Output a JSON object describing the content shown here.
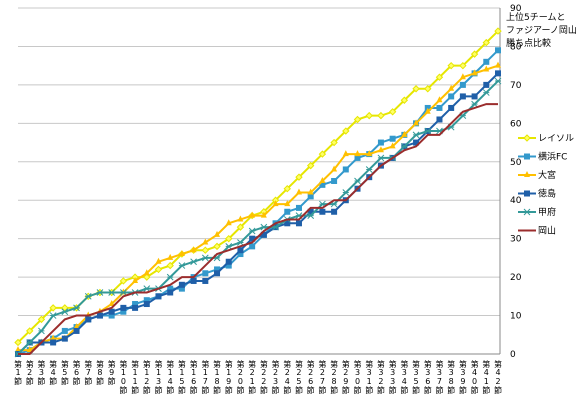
{
  "chart_data": {
    "type": "line",
    "title": [
      "上位5チームと",
      "ファジアーノ岡山",
      "勝ち点比較"
    ],
    "categories": [
      "第1節",
      "第2節",
      "第3節",
      "第4節",
      "第5節",
      "第6節",
      "第7節",
      "第8節",
      "第9節",
      "第10節",
      "第11節",
      "第12節",
      "第13節",
      "第14節",
      "第15節",
      "第16節",
      "第17節",
      "第18節",
      "第19節",
      "第20節",
      "第21節",
      "第22節",
      "第23節",
      "第24節",
      "第25節",
      "第26節",
      "第27節",
      "第28節",
      "第29節",
      "第30節",
      "第31節",
      "第32節",
      "第33節",
      "第34節",
      "第35節",
      "第36節",
      "第37節",
      "第38節",
      "第39節",
      "第40節",
      "第41節",
      "第42節"
    ],
    "ylim": [
      0,
      90
    ],
    "yticks": [
      0,
      10,
      20,
      30,
      40,
      50,
      60,
      70,
      80,
      90
    ],
    "grid": true,
    "legend": "right",
    "series": [
      {
        "name": "レイソル",
        "color": "#e6e600",
        "marker": "diamond",
        "values": [
          3,
          6,
          9,
          12,
          12,
          12,
          15,
          16,
          16,
          19,
          20,
          20,
          22,
          23,
          26,
          27,
          27,
          28,
          30,
          33,
          36,
          37,
          40,
          43,
          46,
          49,
          52,
          55,
          58,
          61,
          62,
          62,
          63,
          66,
          69,
          69,
          72,
          75,
          75,
          78,
          81,
          84
        ]
      },
      {
        "name": "横浜FC",
        "color": "#3399cc",
        "marker": "square",
        "values": [
          0,
          1,
          3,
          4,
          6,
          7,
          9,
          10,
          10,
          11,
          13,
          14,
          15,
          17,
          17,
          20,
          21,
          22,
          23,
          26,
          28,
          31,
          34,
          37,
          38,
          41,
          44,
          45,
          48,
          51,
          52,
          55,
          56,
          57,
          60,
          64,
          64,
          67,
          70,
          73,
          76,
          79
        ]
      },
      {
        "name": "大宮",
        "color": "#ffc000",
        "marker": "triangle",
        "values": [
          1,
          1,
          3,
          4,
          4,
          7,
          10,
          11,
          13,
          16,
          19,
          21,
          24,
          25,
          26,
          27,
          29,
          31,
          34,
          35,
          36,
          36,
          39,
          39,
          42,
          42,
          45,
          48,
          52,
          52,
          52,
          53,
          54,
          57,
          60,
          63,
          66,
          69,
          72,
          73,
          74,
          75
        ]
      },
      {
        "name": "徳島",
        "color": "#1f5fa8",
        "marker": "square",
        "values": [
          0,
          3,
          3,
          3,
          4,
          6,
          9,
          10,
          11,
          12,
          12,
          13,
          15,
          16,
          18,
          19,
          19,
          21,
          24,
          27,
          30,
          31,
          33,
          34,
          34,
          37,
          37,
          37,
          40,
          43,
          46,
          49,
          51,
          54,
          55,
          58,
          61,
          64,
          67,
          67,
          70,
          73
        ]
      },
      {
        "name": "甲府",
        "color": "#339999",
        "marker": "star",
        "values": [
          0,
          3,
          6,
          10,
          11,
          12,
          15,
          16,
          16,
          16,
          16,
          17,
          17,
          20,
          23,
          24,
          25,
          25,
          28,
          29,
          32,
          33,
          33,
          35,
          36,
          36,
          39,
          39,
          42,
          45,
          48,
          51,
          51,
          54,
          57,
          58,
          58,
          59,
          62,
          65,
          68,
          71
        ]
      },
      {
        "name": "岡山",
        "color": "#9b2d2d",
        "marker": "none",
        "values": [
          0,
          0,
          3,
          6,
          9,
          10,
          10,
          11,
          12,
          15,
          16,
          16,
          17,
          18,
          20,
          20,
          23,
          26,
          27,
          28,
          29,
          32,
          34,
          35,
          35,
          38,
          38,
          40,
          40,
          43,
          46,
          49,
          51,
          53,
          54,
          57,
          57,
          60,
          63,
          64,
          65,
          65
        ]
      }
    ]
  }
}
